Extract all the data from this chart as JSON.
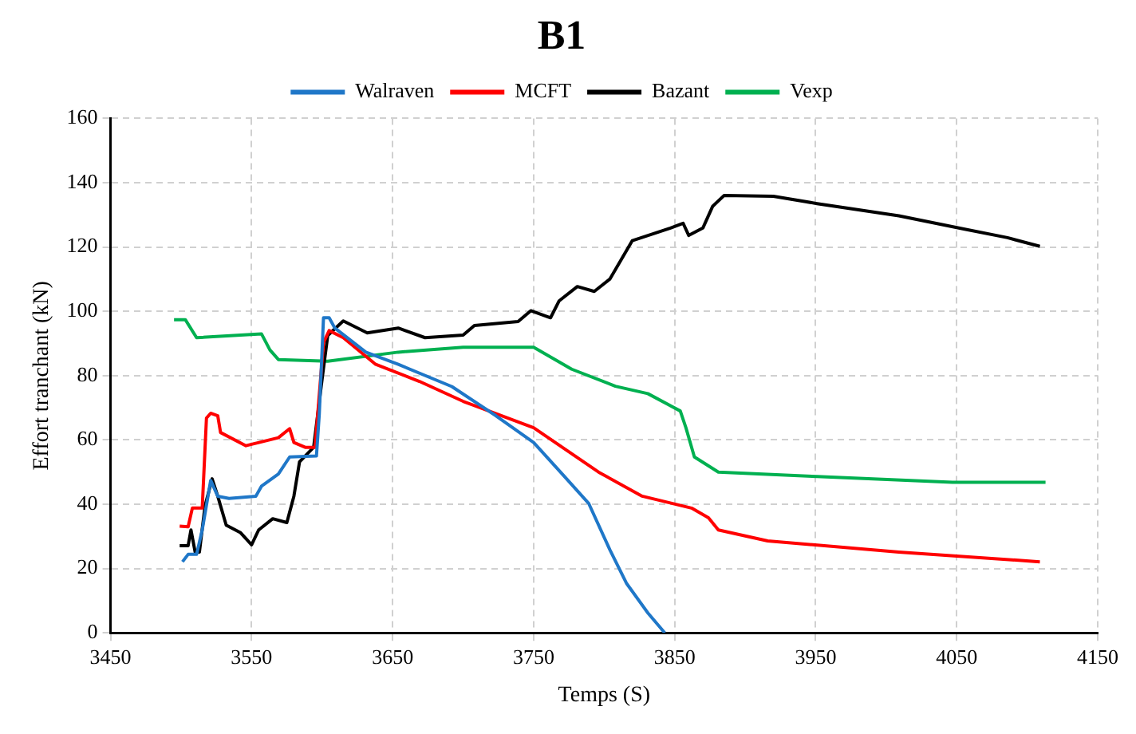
{
  "chart_data": {
    "type": "line",
    "title": "B1",
    "xlabel": "Temps (S)",
    "ylabel": "Effort tranchant (kN)",
    "xlim": [
      3450,
      4150
    ],
    "xticks": [
      3450,
      3550,
      3650,
      3750,
      3850,
      3950,
      4050,
      4150
    ],
    "ylim": [
      0,
      160
    ],
    "yticks": [
      0,
      20,
      40,
      60,
      80,
      100,
      120,
      140,
      160
    ],
    "grid": true,
    "legend": "top",
    "marker": "none",
    "line_style": "solid",
    "series": [
      {
        "name": "Walraven",
        "color": "#1f77c8",
        "x": [
          3501,
          3505,
          3511,
          3515,
          3521,
          3526,
          3534,
          3553,
          3557,
          3569,
          3577,
          3596,
          3598,
          3601,
          3605,
          3609,
          3631,
          3654,
          3692,
          3723,
          3750,
          3769,
          3789,
          3804,
          3816,
          3831,
          3843
        ],
        "values": [
          22.1,
          24.4,
          24.4,
          32,
          47.4,
          42.5,
          41.8,
          42.5,
          45.6,
          49.4,
          54.7,
          55,
          68,
          98,
          98,
          94.8,
          87.3,
          83.5,
          76.6,
          67.6,
          59.2,
          50,
          40.3,
          25.9,
          15.3,
          6.2,
          0
        ]
      },
      {
        "name": "MCFT",
        "color": "#ff0000",
        "x": [
          3499,
          3505,
          3508,
          3515,
          3518,
          3521,
          3526,
          3528,
          3546,
          3569,
          3577,
          3580,
          3588,
          3595,
          3601,
          3605,
          3615,
          3638,
          3669,
          3700,
          3750,
          3796,
          3827,
          3862,
          3874,
          3881,
          3916,
          4009,
          4109
        ],
        "values": [
          33.2,
          33,
          38.8,
          38.8,
          66.8,
          68.3,
          67.5,
          62.3,
          58.2,
          60.7,
          63.5,
          59.2,
          57.7,
          57.7,
          90.3,
          94,
          91.8,
          83.5,
          78.2,
          72,
          63.8,
          50,
          42.5,
          38.8,
          35.8,
          32,
          28.6,
          25.1,
          22.1
        ]
      },
      {
        "name": "Bazant",
        "color": "#000000",
        "x": [
          3499,
          3505,
          3507,
          3510,
          3513,
          3517,
          3522,
          3526,
          3532,
          3542,
          3550,
          3555,
          3565,
          3575,
          3580,
          3584,
          3594,
          3600,
          3604,
          3615,
          3632,
          3654,
          3673,
          3700,
          3708,
          3739,
          3748,
          3762,
          3768,
          3781,
          3793,
          3804,
          3820,
          3847,
          3856,
          3860,
          3870,
          3877,
          3885,
          3920,
          3951,
          4009,
          4055,
          4086,
          4109
        ],
        "values": [
          27.1,
          27.1,
          32,
          25.1,
          25.1,
          39.5,
          47.9,
          42.5,
          33.5,
          31.2,
          27.4,
          32,
          35.5,
          34.3,
          42.5,
          53.2,
          57.7,
          78.9,
          92.5,
          97,
          93.3,
          94.8,
          91.8,
          92.6,
          95.6,
          96.8,
          100.2,
          98,
          103.2,
          107.7,
          106.2,
          110,
          122,
          125.9,
          127.4,
          123.6,
          125.9,
          132.7,
          136,
          135.8,
          133.5,
          129.7,
          125.6,
          122.9,
          120.2
        ]
      },
      {
        "name": "Vexp",
        "color": "#00b050",
        "x": [
          3495,
          3503,
          3511,
          3557,
          3563,
          3569,
          3604,
          3654,
          3700,
          3750,
          3777,
          3808,
          3831,
          3854,
          3858,
          3864,
          3881,
          3951,
          4047,
          4113
        ],
        "values": [
          97.4,
          97.4,
          91.8,
          93,
          88,
          85,
          84.5,
          87.3,
          88.8,
          88.8,
          82,
          76.7,
          74.4,
          69,
          63.8,
          54.7,
          50,
          48.6,
          46.8,
          46.8
        ]
      }
    ]
  }
}
